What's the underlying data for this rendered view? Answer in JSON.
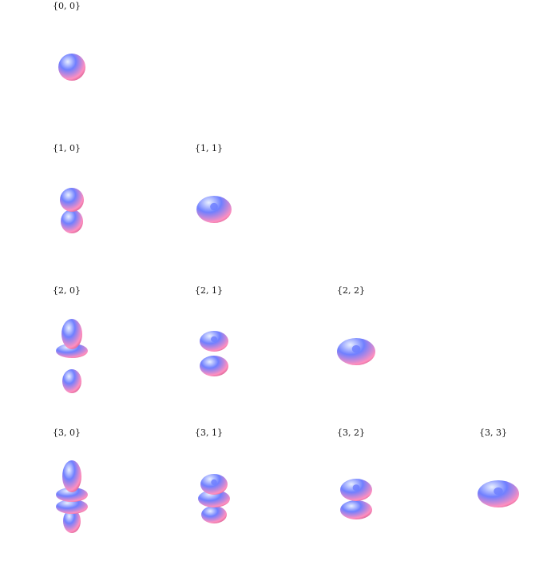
{
  "cells": [
    {
      "label": "{0, 0}",
      "l": 0,
      "m": 0
    },
    {
      "label": "{1, 0}",
      "l": 1,
      "m": 0
    },
    {
      "label": "{1, 1}",
      "l": 1,
      "m": 1
    },
    {
      "label": "{2, 0}",
      "l": 2,
      "m": 0
    },
    {
      "label": "{2, 1}",
      "l": 2,
      "m": 1
    },
    {
      "label": "{2, 2}",
      "l": 2,
      "m": 2
    },
    {
      "label": "{3, 0}",
      "l": 3,
      "m": 0
    },
    {
      "label": "{3, 1}",
      "l": 3,
      "m": 1
    },
    {
      "label": "{3, 2}",
      "l": 3,
      "m": 2
    },
    {
      "label": "{3, 3}",
      "l": 3,
      "m": 3
    }
  ],
  "colors": {
    "highlight": "#e9f0ff",
    "blue": "#6f7fff",
    "pink": "#ff8fbf",
    "shadow": "#c0457a"
  }
}
